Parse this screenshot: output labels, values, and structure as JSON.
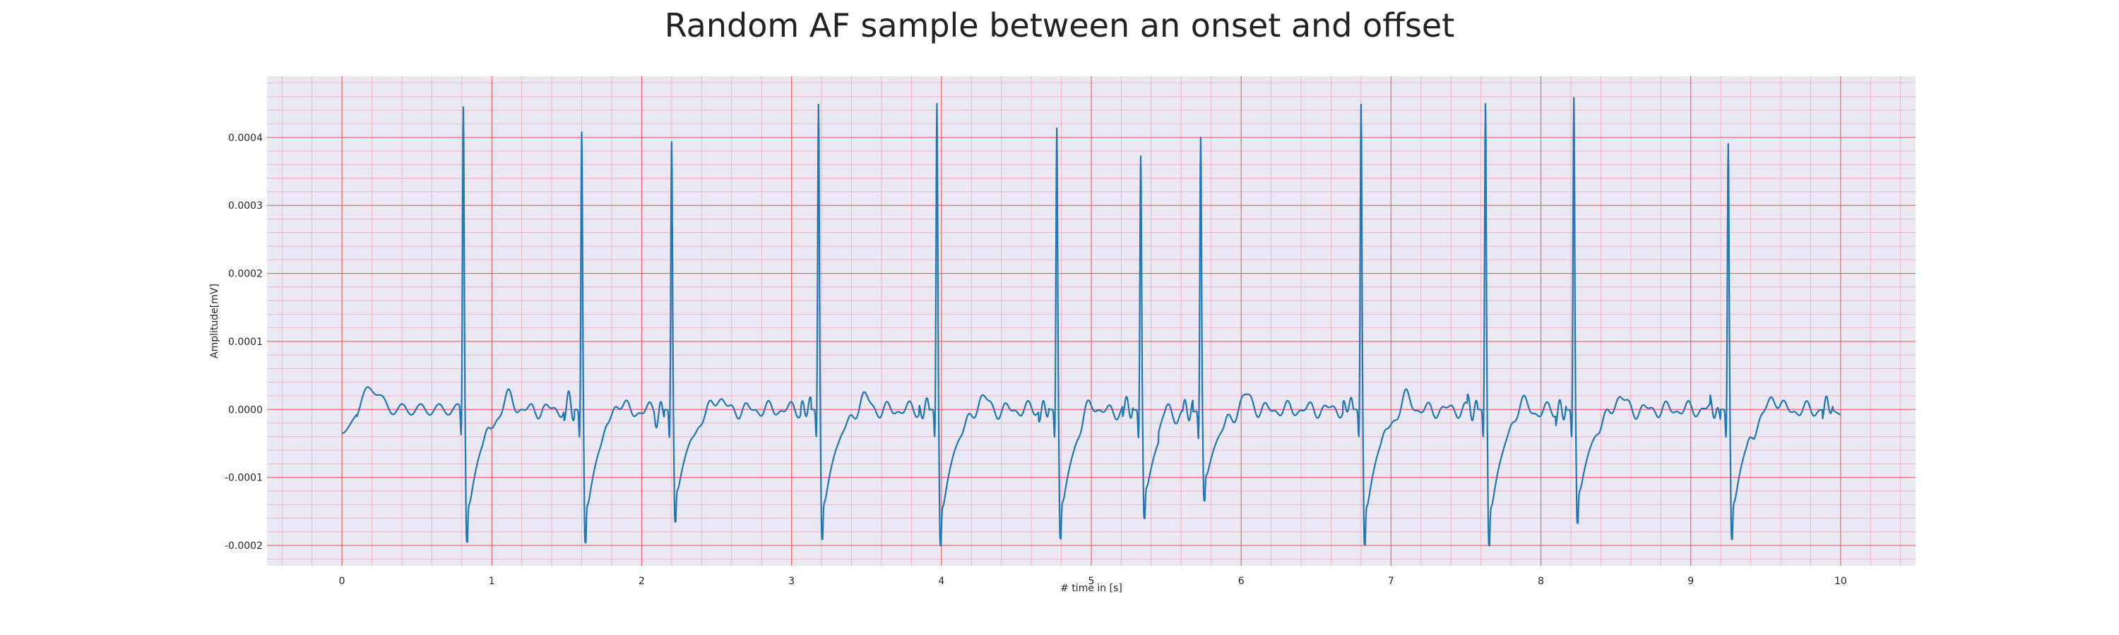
{
  "chart_data": {
    "type": "line",
    "title": "Random AF sample between an onset and offset",
    "xlabel": "# time in [s]",
    "ylabel": "Amplitude[mV]",
    "xlim": [
      -0.5,
      10.5
    ],
    "ylim": [
      -0.00023,
      0.00049
    ],
    "x_ticks": [
      0,
      1,
      2,
      3,
      4,
      5,
      6,
      7,
      8,
      9,
      10
    ],
    "x_tick_labels": [
      "0",
      "1",
      "2",
      "3",
      "4",
      "5",
      "6",
      "7",
      "8",
      "9",
      "10"
    ],
    "y_ticks": [
      -0.0002,
      -0.0001,
      0.0,
      0.0001,
      0.0002,
      0.0003,
      0.0004
    ],
    "y_tick_labels": [
      "-0.0002",
      "-0.0001",
      "0.0000",
      "0.0001",
      "0.0002",
      "0.0003",
      "0.0004"
    ],
    "grid": {
      "major": true,
      "minor": true
    },
    "colors": {
      "line": "#1f77b4",
      "plot_background": "#eae8f2",
      "major_grid": "#f05a5a",
      "minor_grid": "#f4a9b8"
    },
    "beats": [
      {
        "t": 0.81,
        "peak": 0.000448,
        "trough": -0.000195
      },
      {
        "t": 1.6,
        "peak": 0.000408,
        "trough": -0.000196
      },
      {
        "t": 2.2,
        "peak": 0.000394,
        "trough": -0.000165
      },
      {
        "t": 3.18,
        "peak": 0.000449,
        "trough": -0.000191
      },
      {
        "t": 3.97,
        "peak": 0.00045,
        "trough": -0.0002
      },
      {
        "t": 4.77,
        "peak": 0.000414,
        "trough": -0.00019
      },
      {
        "t": 5.33,
        "peak": 0.000373,
        "trough": -0.00016
      },
      {
        "t": 5.73,
        "peak": 0.000402,
        "trough": -0.000133
      },
      {
        "t": 6.8,
        "peak": 0.000449,
        "trough": -0.000199
      },
      {
        "t": 7.63,
        "peak": 0.00045,
        "trough": -0.0002
      },
      {
        "t": 8.22,
        "peak": 0.000459,
        "trough": -0.000167
      },
      {
        "t": 9.25,
        "peak": 0.000391,
        "trough": -0.000191
      }
    ],
    "t_start": 0.0,
    "t_end": 10.0,
    "start_value": -3.5e-05,
    "end_value": -8e-06
  }
}
